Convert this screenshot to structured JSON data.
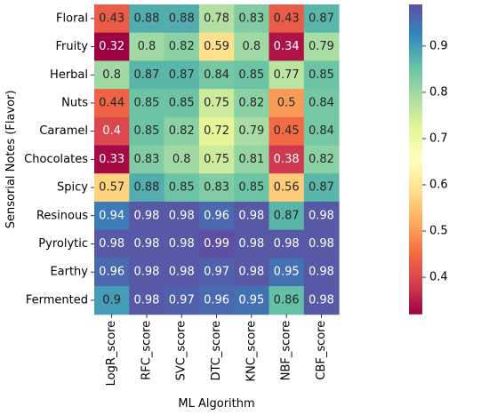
{
  "chart_data": {
    "type": "heatmap",
    "title": "",
    "xlabel": "ML Algorithm",
    "ylabel": "Sensorial Notes (Flavor)",
    "x_categories": [
      "LogR_score",
      "RFC_score",
      "SVC_score",
      "DTC_score",
      "KNC_score",
      "NBF_score",
      "CBF_score"
    ],
    "y_categories": [
      "Floral",
      "Fruity",
      "Herbal",
      "Nuts",
      "Caramel",
      "Chocolates",
      "Spicy",
      "Resinous",
      "Pyrolytic",
      "Earthy",
      "Fermented"
    ],
    "values": [
      [
        0.43,
        0.88,
        0.88,
        0.78,
        0.83,
        0.43,
        0.87
      ],
      [
        0.32,
        0.8,
        0.82,
        0.59,
        0.8,
        0.34,
        0.79
      ],
      [
        0.8,
        0.87,
        0.87,
        0.84,
        0.85,
        0.77,
        0.85
      ],
      [
        0.44,
        0.85,
        0.85,
        0.75,
        0.82,
        0.5,
        0.84
      ],
      [
        0.4,
        0.85,
        0.82,
        0.72,
        0.79,
        0.45,
        0.84
      ],
      [
        0.33,
        0.83,
        0.8,
        0.75,
        0.81,
        0.38,
        0.82
      ],
      [
        0.57,
        0.88,
        0.85,
        0.83,
        0.85,
        0.56,
        0.87
      ],
      [
        0.94,
        0.98,
        0.98,
        0.96,
        0.98,
        0.87,
        0.98
      ],
      [
        0.98,
        0.98,
        0.98,
        0.99,
        0.98,
        0.98,
        0.98
      ],
      [
        0.96,
        0.98,
        0.98,
        0.97,
        0.98,
        0.95,
        0.98
      ],
      [
        0.9,
        0.98,
        0.97,
        0.96,
        0.95,
        0.86,
        0.98
      ]
    ],
    "colormap": "Spectral",
    "value_range": [
      0.32,
      0.99
    ],
    "colorbar_ticks": [
      0.4,
      0.5,
      0.6,
      0.7,
      0.8,
      0.9
    ],
    "annotations": true,
    "grid": false
  }
}
